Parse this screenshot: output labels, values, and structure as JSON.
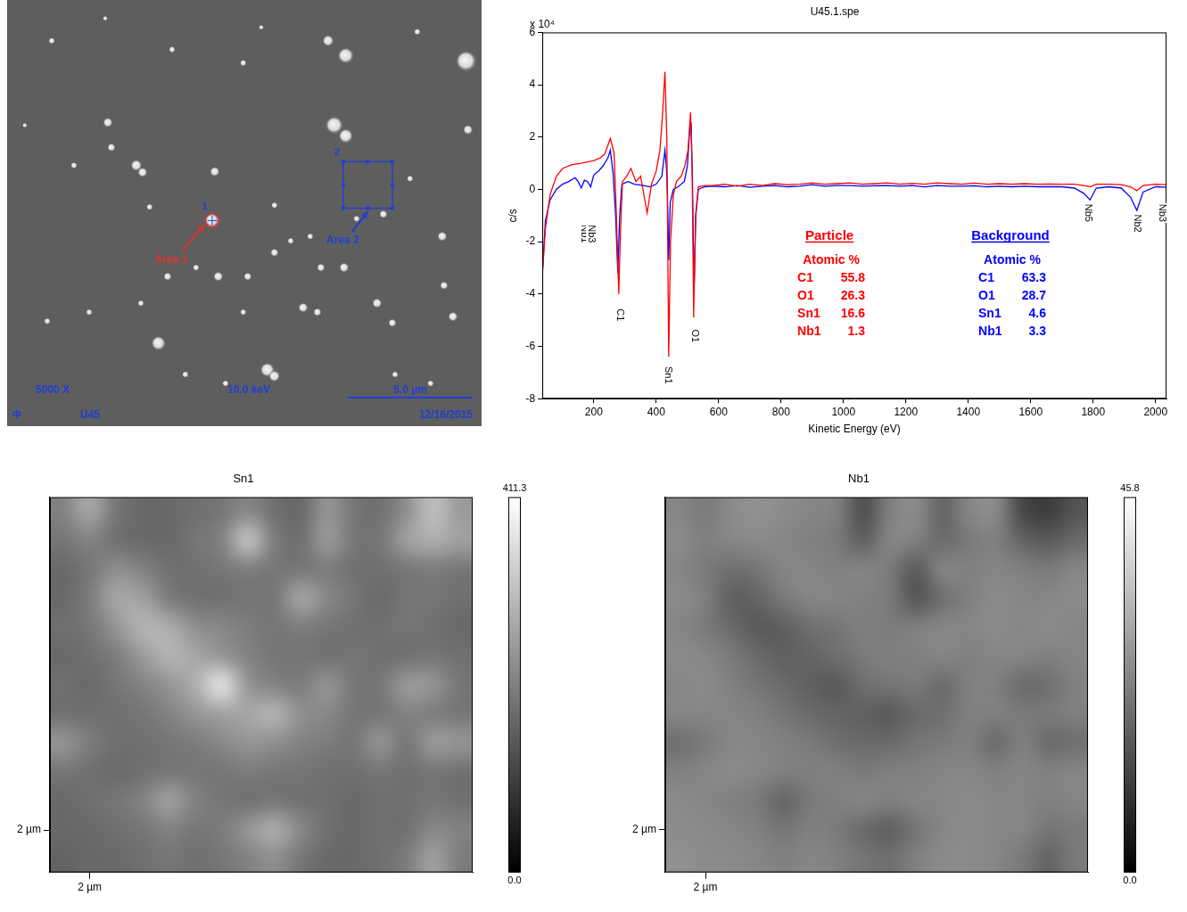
{
  "chart_data": [
    {
      "type": "image",
      "xlim": [
        0,
        19
      ],
      "ylim": [
        0,
        17.1
      ],
      "tick_labels": false,
      "color": "#1f3fd6",
      "particles": {
        "x": [
          1.79,
          3.93,
          6.61,
          9.46,
          10.18,
          12.86,
          13.57,
          16.43,
          18.39,
          2.68,
          4.04,
          4.18,
          5.18,
          5.43,
          5.71,
          8.32,
          8.21,
          10.71,
          10.71,
          11.36,
          12.14,
          13.11,
          13.57,
          14.0,
          15.07,
          16.14,
          17.43,
          18.46,
          6.43,
          7.57,
          8.46,
          9.64,
          12.57,
          13.5,
          11.86,
          12.43,
          14.82,
          15.43,
          17.5,
          17.86,
          1.61,
          3.29,
          5.36,
          6.07,
          7.14,
          8.75,
          10.43,
          10.71,
          15.54,
          16.96,
          0.71,
          9.46
        ],
        "y": [
          15.46,
          16.36,
          15.11,
          14.57,
          16.0,
          15.46,
          14.86,
          15.82,
          14.64,
          10.46,
          12.18,
          11.18,
          10.46,
          10.18,
          8.79,
          10.21,
          8.25,
          8.86,
          6.96,
          7.43,
          7.61,
          12.07,
          11.64,
          8.32,
          8.5,
          9.93,
          7.61,
          11.89,
          6.0,
          6.36,
          6.0,
          6.0,
          6.36,
          6.36,
          4.75,
          4.57,
          4.93,
          4.14,
          5.64,
          4.39,
          4.21,
          4.57,
          4.93,
          3.32,
          2.07,
          1.71,
          2.25,
          2.0,
          2.07,
          1.71,
          12.07,
          4.57
        ],
        "diameter": [
          0.2,
          0.15,
          0.2,
          0.2,
          0.15,
          0.35,
          0.5,
          0.2,
          0.65,
          0.2,
          0.3,
          0.25,
          0.35,
          0.3,
          0.2,
          0.3,
          0.45,
          0.2,
          0.25,
          0.2,
          0.2,
          0.55,
          0.45,
          0.2,
          0.25,
          0.2,
          0.3,
          0.3,
          0.25,
          0.2,
          0.3,
          0.25,
          0.25,
          0.3,
          0.3,
          0.25,
          0.3,
          0.25,
          0.25,
          0.3,
          0.2,
          0.2,
          0.2,
          0.45,
          0.2,
          0.2,
          0.45,
          0.35,
          0.2,
          0.2,
          0.15,
          0.2
        ]
      },
      "areas": [
        {
          "label": "Area 1",
          "number": "1",
          "x": 8.21,
          "y": 8.25,
          "diameter": 0.55,
          "color": "#e8302a"
        },
        {
          "label": "Area 2",
          "number": "2",
          "x": [
            13.46,
            15.43
          ],
          "y": [
            8.75,
            10.61
          ],
          "color": "#1f3fd6"
        }
      ],
      "magnification": "5000 X",
      "voltage": "10.0 keV",
      "sample": "U45",
      "date": "12/16/2015",
      "logo": "Φ",
      "scale_bar": {
        "length": 5.0,
        "label": "5.0 µm"
      }
    },
    {
      "type": "line",
      "title": "U45.1.spe",
      "x_label": "Kinetic Energy (eV)",
      "y_label": "c/s",
      "y_multiplier": "x 10⁴",
      "xlim": [
        35,
        2035
      ],
      "xticks": [
        200,
        400,
        600,
        800,
        1000,
        1200,
        1400,
        1600,
        1800,
        2000
      ],
      "ylim": [
        -8,
        6
      ],
      "yticks": [
        -8,
        -6,
        -4,
        -2,
        0,
        2,
        4,
        6
      ],
      "grid": false,
      "series": [
        {
          "name": "Particle",
          "color": "#ff0000",
          "x": [
            35,
            45,
            60,
            80,
            100,
            130,
            160,
            180,
            200,
            220,
            235,
            253,
            265,
            272,
            280,
            286,
            292,
            305,
            319,
            335,
            350,
            362,
            371,
            385,
            400,
            412,
            420,
            428,
            434,
            437,
            440,
            446,
            455,
            465,
            480,
            492,
            502,
            510,
            515,
            518,
            520,
            526,
            535,
            555,
            580,
            620,
            660,
            700,
            740,
            780,
            820,
            860,
            900,
            940,
            980,
            1020,
            1060,
            1100,
            1140,
            1180,
            1220,
            1260,
            1300,
            1340,
            1380,
            1420,
            1460,
            1500,
            1540,
            1580,
            1620,
            1660,
            1700,
            1740,
            1770,
            1790,
            1810,
            1850,
            1890,
            1920,
            1940,
            1960,
            2000,
            2035
          ],
          "values": [
            -3.3,
            -1.5,
            -0.2,
            0.5,
            0.8,
            0.95,
            1.0,
            1.05,
            1.1,
            1.2,
            1.35,
            1.95,
            1.4,
            -0.8,
            -4.0,
            -1.5,
            0.3,
            0.5,
            0.8,
            0.3,
            0.5,
            -0.3,
            -0.9,
            0.2,
            0.7,
            1.5,
            2.8,
            4.5,
            2.0,
            -2.0,
            -6.4,
            -2.0,
            -0.2,
            0.3,
            0.5,
            0.9,
            1.5,
            2.95,
            0.8,
            -2.5,
            -4.9,
            -1.0,
            0.1,
            0.15,
            0.15,
            0.2,
            0.12,
            0.2,
            0.15,
            0.22,
            0.18,
            0.2,
            0.25,
            0.2,
            0.22,
            0.25,
            0.2,
            0.22,
            0.25,
            0.2,
            0.23,
            0.2,
            0.25,
            0.22,
            0.2,
            0.24,
            0.2,
            0.22,
            0.2,
            0.22,
            0.2,
            0.21,
            0.2,
            0.2,
            0.15,
            0.1,
            0.2,
            0.2,
            0.18,
            0.1,
            -0.05,
            0.15,
            0.2,
            0.18
          ],
          "composition": {
            "heading": "Atomic %",
            "elements": [
              "C1",
              "O1",
              "Sn1",
              "Nb1"
            ],
            "values": [
              55.8,
              26.3,
              16.6,
              1.3
            ]
          }
        },
        {
          "name": "Background",
          "color": "#0000ff",
          "x": [
            35,
            45,
            60,
            80,
            100,
            120,
            140,
            150,
            160,
            170,
            180,
            190,
            200,
            215,
            230,
            245,
            253,
            262,
            270,
            277,
            283,
            290,
            310,
            330,
            360,
            380,
            400,
            418,
            428,
            433,
            436,
            440,
            445,
            455,
            470,
            490,
            500,
            508,
            512,
            516,
            519,
            522,
            527,
            535,
            555,
            580,
            620,
            660,
            700,
            740,
            780,
            820,
            860,
            900,
            940,
            980,
            1020,
            1060,
            1100,
            1140,
            1180,
            1220,
            1260,
            1300,
            1340,
            1380,
            1420,
            1460,
            1500,
            1540,
            1580,
            1620,
            1660,
            1700,
            1740,
            1770,
            1790,
            1810,
            1850,
            1890,
            1920,
            1940,
            1960,
            2000,
            2035
          ],
          "values": [
            -3.3,
            -1.2,
            -0.4,
            0.0,
            0.2,
            0.3,
            0.45,
            0.3,
            0.05,
            0.35,
            0.3,
            0.1,
            0.55,
            0.7,
            0.9,
            1.2,
            1.5,
            0.6,
            -1.0,
            -3.2,
            -1.0,
            0.2,
            0.3,
            0.2,
            0.15,
            0.1,
            0.2,
            0.5,
            1.5,
            0.8,
            -0.2,
            -2.7,
            -0.5,
            0.0,
            0.1,
            0.3,
            0.9,
            2.4,
            2.5,
            0.5,
            -2.0,
            -3.6,
            -1.0,
            0.0,
            0.1,
            0.12,
            0.1,
            0.15,
            0.08,
            0.12,
            0.15,
            0.1,
            0.12,
            0.18,
            0.12,
            0.15,
            0.15,
            0.12,
            0.14,
            0.15,
            0.12,
            0.15,
            0.1,
            0.15,
            0.12,
            0.12,
            0.14,
            0.1,
            0.12,
            0.1,
            0.12,
            0.1,
            0.1,
            0.1,
            0.05,
            -0.15,
            -0.4,
            0.05,
            0.1,
            0.05,
            -0.3,
            -0.8,
            -0.1,
            0.1,
            0.08
          ],
          "composition": {
            "heading": "Atomic %",
            "elements": [
              "C1",
              "O1",
              "Sn1",
              "Nb1"
            ],
            "values": [
              63.3,
              28.7,
              4.6,
              3.3
            ]
          }
        }
      ],
      "peak_labels": [
        {
          "label": "Nb1",
          "x": 170,
          "y": -1.7
        },
        {
          "label": "Nb3",
          "x": 192,
          "y": -1.7
        },
        {
          "label": "C1",
          "x": 283,
          "y": -4.8
        },
        {
          "label": "Sn1",
          "x": 437,
          "y": -7.1
        },
        {
          "label": "O1",
          "x": 523,
          "y": -5.6
        },
        {
          "label": "Nb5",
          "x": 1784,
          "y": -0.9
        },
        {
          "label": "Nb2",
          "x": 1941,
          "y": -1.3
        },
        {
          "label": "Nb3",
          "x": 2022,
          "y": -0.9
        }
      ]
    },
    {
      "type": "heatmap",
      "title": "Sn1",
      "xlim": [
        0,
        21.2
      ],
      "xticks": [
        {
          "value": 2,
          "label": "2 µm"
        }
      ],
      "ylim": [
        0,
        17.7
      ],
      "yticks": [
        {
          "value": 2,
          "label": "2 µm"
        }
      ],
      "cells": [
        [
          210,
          270,
          190,
          170,
          170,
          180,
          190,
          220,
          180,
          170,
          240,
          190,
          180,
          230,
          310,
          250
        ],
        [
          190,
          210,
          180,
          170,
          170,
          190,
          210,
          320,
          200,
          180,
          250,
          190,
          190,
          260,
          280,
          260
        ],
        [
          170,
          190,
          230,
          210,
          180,
          180,
          190,
          200,
          190,
          190,
          200,
          180,
          180,
          190,
          200,
          190
        ],
        [
          170,
          200,
          270,
          260,
          200,
          180,
          180,
          190,
          190,
          270,
          220,
          190,
          170,
          190,
          190,
          180
        ],
        [
          180,
          190,
          240,
          290,
          280,
          230,
          220,
          200,
          190,
          200,
          190,
          180,
          180,
          190,
          180,
          170
        ],
        [
          170,
          180,
          200,
          250,
          290,
          270,
          240,
          210,
          190,
          190,
          180,
          190,
          180,
          180,
          190,
          180
        ],
        [
          180,
          170,
          190,
          210,
          240,
          280,
          370,
          240,
          210,
          200,
          240,
          190,
          190,
          250,
          240,
          190
        ],
        [
          180,
          180,
          180,
          190,
          210,
          240,
          260,
          270,
          290,
          230,
          220,
          190,
          190,
          210,
          200,
          190
        ],
        [
          240,
          200,
          180,
          180,
          190,
          200,
          220,
          240,
          230,
          210,
          200,
          190,
          240,
          190,
          250,
          240
        ],
        [
          190,
          180,
          170,
          180,
          190,
          190,
          190,
          200,
          190,
          190,
          180,
          180,
          190,
          180,
          190,
          180
        ],
        [
          170,
          180,
          190,
          210,
          260,
          210,
          190,
          180,
          190,
          180,
          180,
          170,
          180,
          180,
          190,
          180
        ],
        [
          170,
          170,
          180,
          190,
          210,
          190,
          200,
          240,
          280,
          220,
          180,
          170,
          180,
          180,
          220,
          210
        ],
        [
          160,
          170,
          170,
          180,
          190,
          180,
          190,
          210,
          230,
          190,
          170,
          170,
          180,
          200,
          260,
          200
        ]
      ],
      "colorbar": {
        "range": [
          0,
          411.3
        ],
        "ticks": [
          {
            "value": 0,
            "label": "0.0"
          },
          411.3
        ]
      }
    },
    {
      "type": "heatmap",
      "title": "Nb1",
      "xlim": [
        0,
        21.0
      ],
      "xticks": [
        {
          "value": 2,
          "label": "2 µm"
        }
      ],
      "ylim": [
        0,
        17.6
      ],
      "yticks": [
        {
          "value": 2,
          "label": "2 µm"
        }
      ],
      "cells": [
        [
          24,
          22,
          25,
          26,
          25,
          24,
          23,
          14,
          23,
          25,
          18,
          24,
          25,
          13,
          11,
          15
        ],
        [
          25,
          23,
          24,
          25,
          24,
          23,
          22,
          17,
          24,
          23,
          19,
          22,
          23,
          18,
          16,
          19
        ],
        [
          24,
          22,
          20,
          21,
          24,
          24,
          23,
          24,
          22,
          16,
          24,
          23,
          24,
          23,
          22,
          24
        ],
        [
          25,
          23,
          17,
          18,
          22,
          24,
          24,
          23,
          22,
          15,
          20,
          23,
          25,
          24,
          24,
          25
        ],
        [
          24,
          22,
          19,
          16,
          17,
          20,
          21,
          23,
          22,
          23,
          24,
          24,
          25,
          24,
          25,
          24
        ],
        [
          25,
          24,
          22,
          19,
          17,
          18,
          20,
          22,
          23,
          23,
          24,
          23,
          24,
          24,
          23,
          24
        ],
        [
          24,
          25,
          23,
          21,
          19,
          17,
          16,
          20,
          21,
          22,
          19,
          23,
          23,
          19,
          20,
          23
        ],
        [
          24,
          24,
          24,
          23,
          21,
          19,
          18,
          17,
          16,
          19,
          20,
          23,
          23,
          22,
          22,
          23
        ],
        [
          20,
          22,
          24,
          24,
          23,
          22,
          20,
          19,
          19,
          21,
          22,
          23,
          19,
          23,
          19,
          20
        ],
        [
          23,
          24,
          25,
          24,
          23,
          23,
          23,
          22,
          23,
          23,
          24,
          24,
          23,
          24,
          23,
          24
        ],
        [
          25,
          24,
          23,
          22,
          18,
          22,
          23,
          24,
          23,
          24,
          24,
          25,
          24,
          24,
          23,
          24
        ],
        [
          25,
          25,
          24,
          23,
          21,
          23,
          22,
          19,
          17,
          21,
          24,
          25,
          24,
          24,
          21,
          22
        ],
        [
          26,
          25,
          25,
          24,
          23,
          24,
          23,
          21,
          20,
          23,
          25,
          25,
          24,
          22,
          18,
          22
        ]
      ],
      "colorbar": {
        "range": [
          0,
          45.8
        ],
        "ticks": [
          {
            "value": 0,
            "label": "0.0"
          },
          45.8
        ]
      }
    }
  ]
}
